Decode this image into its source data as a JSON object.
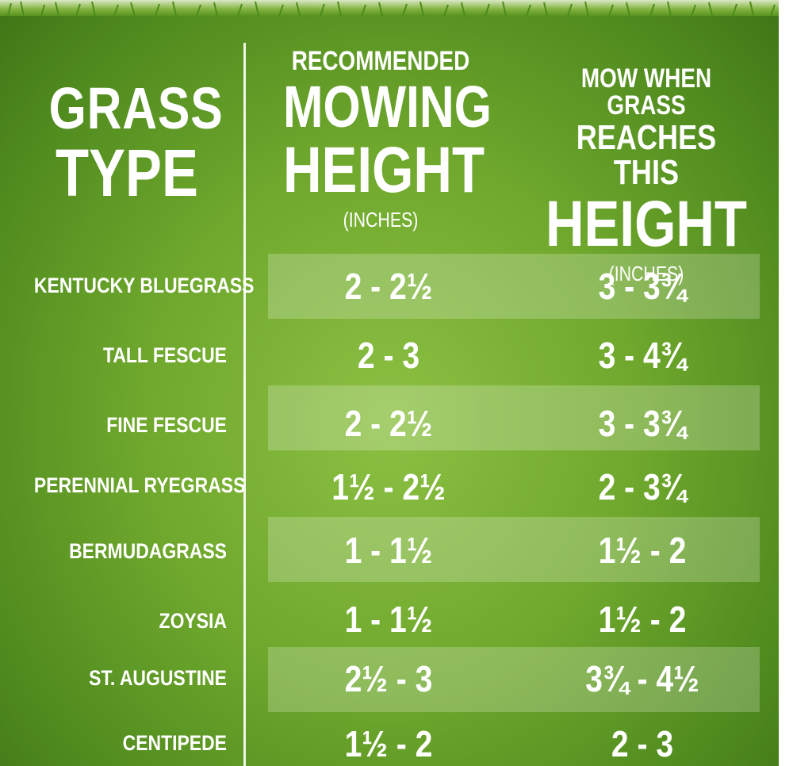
{
  "headers": {
    "grass_type_line1": "GRASS",
    "grass_type_line2": "TYPE",
    "mowing_small": "RECOMMENDED",
    "mowing_big1": "MOWING",
    "mowing_big2": "HEIGHT",
    "mowing_unit": "(INCHES)",
    "when_small1": "MOW WHEN GRASS",
    "when_small2": "REACHES THIS",
    "when_big": "HEIGHT",
    "when_unit": "(INCHES)"
  },
  "rows": [
    {
      "grass": "KENTUCKY BLUEGRASS",
      "mowing": "2 - 2½",
      "mow_when": "3 - 3¾"
    },
    {
      "grass": "TALL FESCUE",
      "mowing": "2 - 3",
      "mow_when": "3 - 4¾"
    },
    {
      "grass": "FINE FESCUE",
      "mowing": "2 - 2½",
      "mow_when": "3 - 3¾"
    },
    {
      "grass": "PERENNIAL RYEGRASS",
      "mowing": "1½ - 2½",
      "mow_when": "2 - 3¾"
    },
    {
      "grass": "BERMUDAGRASS",
      "mowing": "1 - 1½",
      "mow_when": "1½ - 2"
    },
    {
      "grass": "ZOYSIA",
      "mowing": "1 - 1½",
      "mow_when": "1½ - 2"
    },
    {
      "grass": "ST. AUGUSTINE",
      "mowing": "2½ - 3",
      "mow_when": "3¾ - 4½"
    },
    {
      "grass": "CENTIPEDE",
      "mowing": "1½ - 2",
      "mow_when": "2 - 3"
    }
  ],
  "colors": {
    "background_green": "#6fa82d",
    "text": "#ffffff"
  }
}
